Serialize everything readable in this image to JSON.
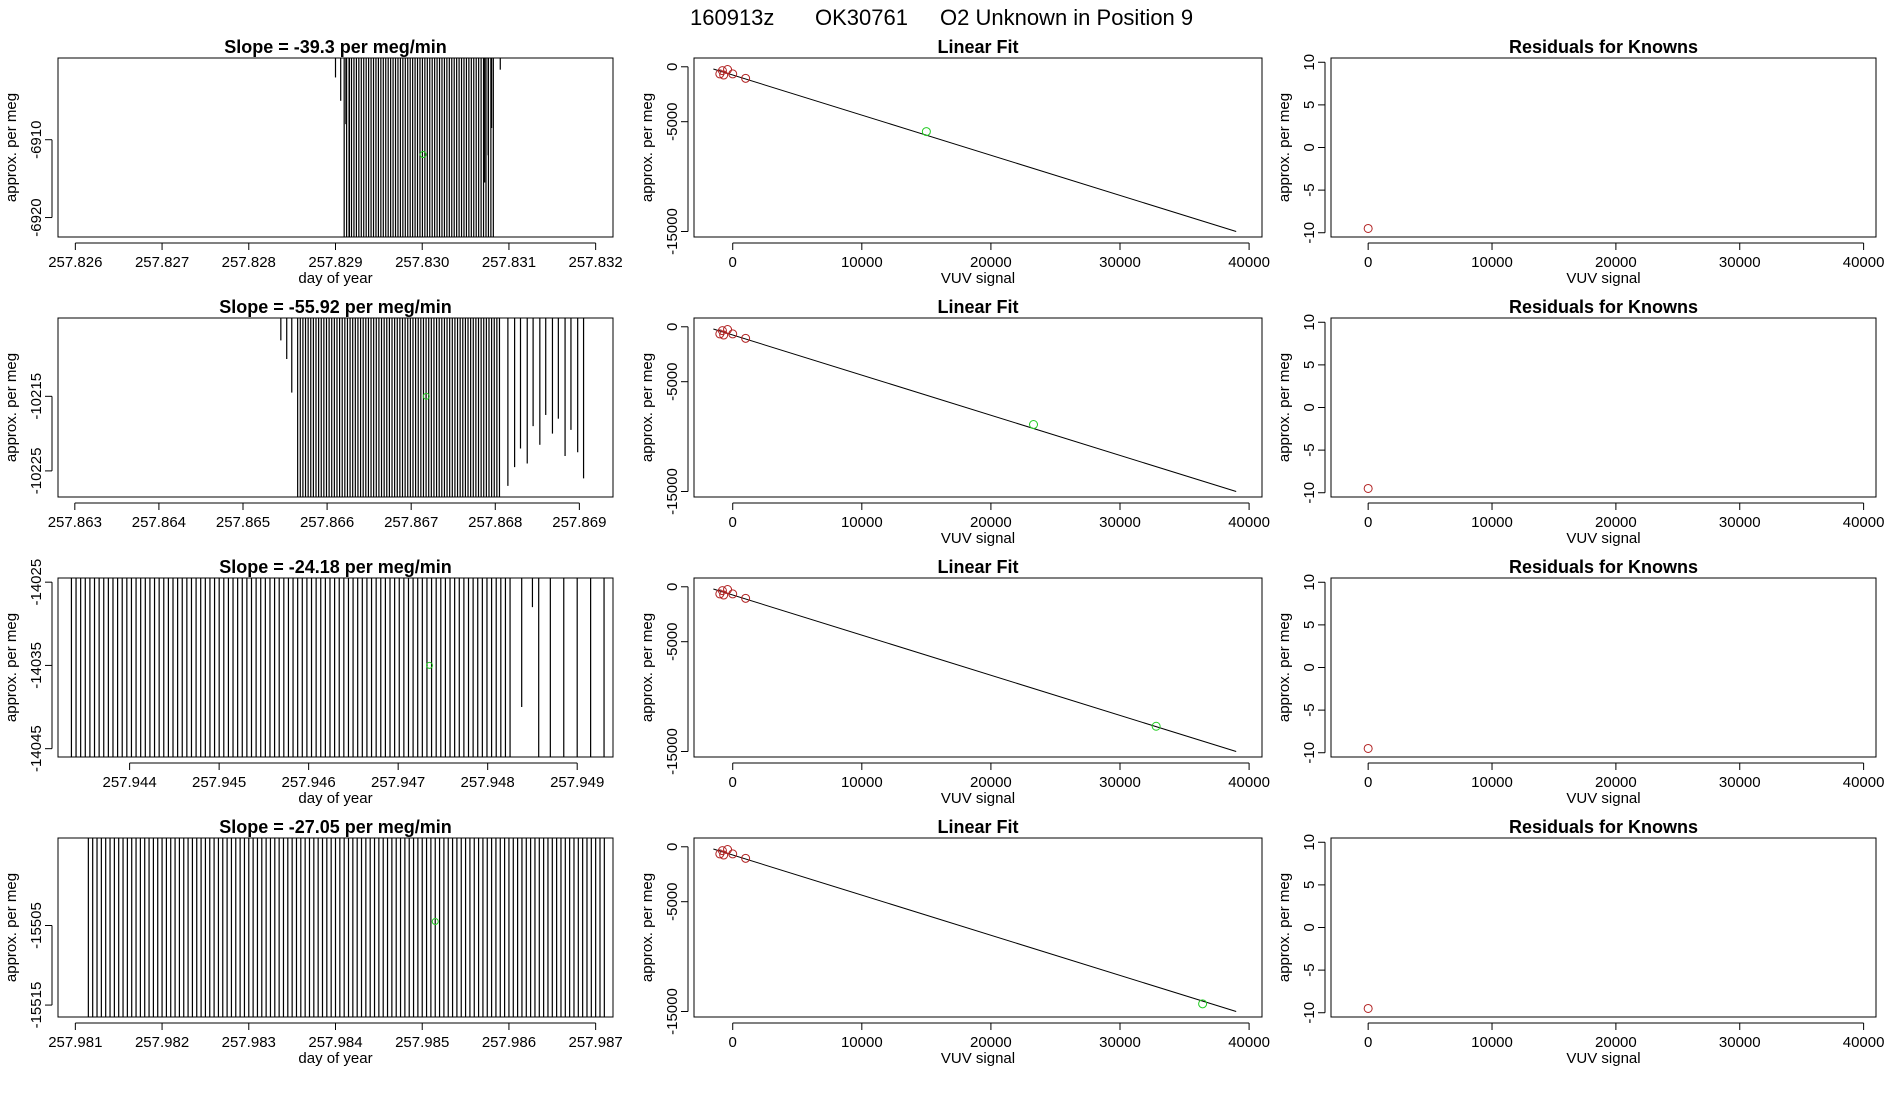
{
  "figure": {
    "title_parts": [
      "160913z",
      "OK30761",
      "O2 Unknown in Position  9"
    ]
  },
  "colors": {
    "axis": "#000000",
    "trace": "#000000",
    "unknown_point": "#22cc22",
    "known_point": "#b22222",
    "fit_line": "#000000"
  },
  "chart_data": [
    {
      "type": "line",
      "kind": "trace",
      "row": 0,
      "title": "Slope =  -39.3  per meg/min",
      "xlabel": "day of year",
      "ylabel": "approx. per meg",
      "xlim": [
        257.8258,
        257.8322
      ],
      "ylim": [
        -6922.5,
        -6899.5
      ],
      "xticks": [
        257.826,
        257.827,
        257.828,
        257.829,
        257.83,
        257.831,
        257.832
      ],
      "xticklabels": [
        "257.826",
        "257.827",
        "257.828",
        "257.829",
        "257.830",
        "257.831",
        "257.832"
      ],
      "yticks": [
        -6910,
        -6920
      ],
      "yticklabels": [
        "-6910",
        "-6920"
      ],
      "segments": {
        "x_start": 257.8291,
        "x_end": 257.83082,
        "count": 62,
        "y_top": -6899.5,
        "y_bottom_min": -6922.5
      },
      "irregular_segments": [
        [
          257.829,
          -6902.0
        ],
        [
          257.82906,
          -6905.0
        ],
        [
          257.82912,
          -6908.0
        ],
        [
          257.82916,
          -6922.5
        ],
        [
          257.83072,
          -6915.5
        ],
        [
          257.83076,
          -6912.0
        ],
        [
          257.8308,
          -6908.5
        ],
        [
          257.8309,
          -6901.0
        ]
      ],
      "points": [
        [
          257.83001,
          -6911.9
        ]
      ]
    },
    {
      "type": "scatter",
      "kind": "fit",
      "row": 0,
      "title": "Linear Fit",
      "xlabel": "VUV signal",
      "ylabel": "approx. per meg",
      "xlim": [
        -3000,
        41000
      ],
      "ylim": [
        -15500,
        800
      ],
      "xticks": [
        0,
        10000,
        20000,
        30000,
        40000
      ],
      "xticklabels": [
        "0",
        "10000",
        "20000",
        "30000",
        "40000"
      ],
      "yticks": [
        0,
        -5000,
        -15000
      ],
      "yticklabels": [
        "0",
        "-5000",
        "-15000"
      ],
      "fit_line": [
        [
          -1500,
          -200
        ],
        [
          39000,
          -15000
        ]
      ],
      "known_points": [
        [
          -800,
          -350
        ],
        [
          -400,
          -250
        ],
        [
          -1000,
          -650
        ],
        [
          -700,
          -750
        ],
        [
          0,
          -650
        ],
        [
          1000,
          -1050
        ]
      ],
      "points": [
        [
          15000,
          -5900
        ]
      ]
    },
    {
      "type": "scatter",
      "kind": "residual",
      "row": 0,
      "title": "Residuals for Knowns",
      "xlabel": "VUV signal",
      "ylabel": "approx. per meg",
      "xlim": [
        -3000,
        41000
      ],
      "ylim": [
        -10.5,
        10.5
      ],
      "xticks": [
        0,
        10000,
        20000,
        30000,
        40000
      ],
      "xticklabels": [
        "0",
        "10000",
        "20000",
        "30000",
        "40000"
      ],
      "yticks": [
        10,
        5,
        0,
        -5,
        -10
      ],
      "yticklabels": [
        "10",
        "5",
        "0",
        "-5",
        "-10"
      ],
      "known_points": [
        [
          0,
          -9.5
        ]
      ]
    },
    {
      "type": "line",
      "kind": "trace",
      "row": 1,
      "title": "Slope =  -55.92  per meg/min",
      "xlabel": "",
      "ylabel": "approx. per meg",
      "xlim": [
        257.8628,
        257.8694
      ],
      "ylim": [
        -10228.5,
        -10204.5
      ],
      "xticks": [
        257.863,
        257.864,
        257.865,
        257.866,
        257.867,
        257.868,
        257.869
      ],
      "xticklabels": [
        "257.863",
        "257.864",
        "257.865",
        "257.866",
        "257.867",
        "257.868",
        "257.869"
      ],
      "yticks": [
        -10215,
        -10225
      ],
      "yticklabels": [
        "-10215",
        "-10225"
      ],
      "segments": {
        "x_start": 257.86565,
        "x_end": 257.86805,
        "count": 78,
        "y_top": -10204.5,
        "y_bottom_min": -10228.5
      },
      "irregular_segments": [
        [
          257.86545,
          -10207.5
        ],
        [
          257.86552,
          -10210.0
        ],
        [
          257.86558,
          -10214.5
        ],
        [
          257.86815,
          -10227.0
        ],
        [
          257.86823,
          -10224.5
        ],
        [
          257.8683,
          -10222.0
        ],
        [
          257.86838,
          -10224.0
        ],
        [
          257.86845,
          -10219.0
        ],
        [
          257.86853,
          -10221.5
        ],
        [
          257.8686,
          -10217.5
        ],
        [
          257.86868,
          -10220.0
        ],
        [
          257.86875,
          -10218.0
        ],
        [
          257.86883,
          -10223.0
        ],
        [
          257.8689,
          -10219.5
        ],
        [
          257.86898,
          -10222.5
        ],
        [
          257.86905,
          -10226.0
        ]
      ],
      "points": [
        [
          257.86718,
          -10215.0
        ]
      ]
    },
    {
      "type": "scatter",
      "kind": "fit",
      "row": 1,
      "title": "Linear Fit",
      "xlabel": "VUV signal",
      "ylabel": "approx. per meg",
      "xlim": [
        -3000,
        41000
      ],
      "ylim": [
        -15500,
        800
      ],
      "xticks": [
        0,
        10000,
        20000,
        30000,
        40000
      ],
      "xticklabels": [
        "0",
        "10000",
        "20000",
        "30000",
        "40000"
      ],
      "yticks": [
        0,
        -5000,
        -15000
      ],
      "yticklabels": [
        "0",
        "-5000",
        "-15000"
      ],
      "fit_line": [
        [
          -1500,
          -200
        ],
        [
          39000,
          -15000
        ]
      ],
      "known_points": [
        [
          -800,
          -350
        ],
        [
          -400,
          -250
        ],
        [
          -1000,
          -650
        ],
        [
          -700,
          -750
        ],
        [
          0,
          -650
        ],
        [
          1000,
          -1050
        ]
      ],
      "points": [
        [
          23300,
          -8900
        ]
      ]
    },
    {
      "type": "scatter",
      "kind": "residual",
      "row": 1,
      "title": "Residuals for Knowns",
      "xlabel": "VUV signal",
      "ylabel": "approx. per meg",
      "xlim": [
        -3000,
        41000
      ],
      "ylim": [
        -10.5,
        10.5
      ],
      "xticks": [
        0,
        10000,
        20000,
        30000,
        40000
      ],
      "xticklabels": [
        "0",
        "10000",
        "20000",
        "30000",
        "40000"
      ],
      "yticks": [
        10,
        5,
        0,
        -5,
        -10
      ],
      "yticklabels": [
        "10",
        "5",
        "0",
        "-5",
        "-10"
      ],
      "known_points": [
        [
          0,
          -9.5
        ]
      ]
    },
    {
      "type": "line",
      "kind": "trace",
      "row": 2,
      "title": "Slope =  -24.18  per meg/min",
      "xlabel": "day of year",
      "ylabel": "approx. per meg",
      "xlim": [
        257.9432,
        257.9494
      ],
      "ylim": [
        -14046.0,
        -14024.5
      ],
      "xticks": [
        257.944,
        257.945,
        257.946,
        257.947,
        257.948,
        257.949
      ],
      "xticklabels": [
        "257.944",
        "257.945",
        "257.946",
        "257.947",
        "257.948",
        "257.949"
      ],
      "yticks": [
        -14025,
        -14035,
        -14045
      ],
      "yticklabels": [
        "-14025",
        "-14035",
        "-14045"
      ],
      "segments": {
        "x_start": 257.94335,
        "x_end": 257.94825,
        "count": 96,
        "y_top": -14024.5,
        "y_bottom_min": -14046.0
      },
      "irregular_segments": [
        [
          257.94838,
          -14040.0
        ],
        [
          257.9485,
          -14028.0
        ],
        [
          257.94857,
          -14046.0
        ],
        [
          257.9487,
          -14046.0
        ],
        [
          257.94885,
          -14046.0
        ],
        [
          257.949,
          -14046.0
        ],
        [
          257.94915,
          -14046.0
        ],
        [
          257.9493,
          -14046.0
        ]
      ],
      "points": [
        [
          257.94735,
          -14035.0
        ]
      ]
    },
    {
      "type": "scatter",
      "kind": "fit",
      "row": 2,
      "title": "Linear Fit",
      "xlabel": "VUV signal",
      "ylabel": "approx. per meg",
      "xlim": [
        -3000,
        41000
      ],
      "ylim": [
        -15500,
        800
      ],
      "xticks": [
        0,
        10000,
        20000,
        30000,
        40000
      ],
      "xticklabels": [
        "0",
        "10000",
        "20000",
        "30000",
        "40000"
      ],
      "yticks": [
        0,
        -5000,
        -15000
      ],
      "yticklabels": [
        "0",
        "-5000",
        "-15000"
      ],
      "fit_line": [
        [
          -1500,
          -200
        ],
        [
          39000,
          -15000
        ]
      ],
      "known_points": [
        [
          -800,
          -350
        ],
        [
          -400,
          -250
        ],
        [
          -1000,
          -650
        ],
        [
          -700,
          -750
        ],
        [
          0,
          -650
        ],
        [
          1000,
          -1050
        ]
      ],
      "points": [
        [
          32800,
          -12700
        ]
      ]
    },
    {
      "type": "scatter",
      "kind": "residual",
      "row": 2,
      "title": "Residuals for Knowns",
      "xlabel": "VUV signal",
      "ylabel": "approx. per meg",
      "xlim": [
        -3000,
        41000
      ],
      "ylim": [
        -10.5,
        10.5
      ],
      "xticks": [
        0,
        10000,
        20000,
        30000,
        40000
      ],
      "xticklabels": [
        "0",
        "10000",
        "20000",
        "30000",
        "40000"
      ],
      "yticks": [
        10,
        5,
        0,
        -5,
        -10
      ],
      "yticklabels": [
        "10",
        "5",
        "0",
        "-5",
        "-10"
      ],
      "known_points": [
        [
          0,
          -9.5
        ]
      ]
    },
    {
      "type": "line",
      "kind": "trace",
      "row": 3,
      "title": "Slope =  -27.05  per meg/min",
      "xlabel": "day of year",
      "ylabel": "approx. per meg",
      "xlim": [
        257.9808,
        257.9872
      ],
      "ylim": [
        -15516.5,
        -15494.0
      ],
      "xticks": [
        257.981,
        257.982,
        257.983,
        257.984,
        257.985,
        257.986,
        257.987
      ],
      "xticklabels": [
        "257.981",
        "257.982",
        "257.983",
        "257.984",
        "257.985",
        "257.986",
        "257.987"
      ],
      "yticks": [
        -15505,
        -15515
      ],
      "yticklabels": [
        "-15505",
        "-15515"
      ],
      "segments": {
        "x_start": 257.98115,
        "x_end": 257.9871,
        "count": 120,
        "y_top": -15494.0,
        "y_bottom_min": -15516.5
      },
      "irregular_segments": [],
      "points": [
        [
          257.98515,
          -15504.5
        ]
      ]
    },
    {
      "type": "scatter",
      "kind": "fit",
      "row": 3,
      "title": "Linear Fit",
      "xlabel": "VUV signal",
      "ylabel": "approx. per meg",
      "xlim": [
        -3000,
        41000
      ],
      "ylim": [
        -15500,
        800
      ],
      "xticks": [
        0,
        10000,
        20000,
        30000,
        40000
      ],
      "xticklabels": [
        "0",
        "10000",
        "20000",
        "30000",
        "40000"
      ],
      "yticks": [
        0,
        -5000,
        -15000
      ],
      "yticklabels": [
        "0",
        "-5000",
        "-15000"
      ],
      "fit_line": [
        [
          -1500,
          -200
        ],
        [
          39000,
          -15000
        ]
      ],
      "known_points": [
        [
          -800,
          -350
        ],
        [
          -400,
          -250
        ],
        [
          -1000,
          -650
        ],
        [
          -700,
          -750
        ],
        [
          0,
          -650
        ],
        [
          1000,
          -1050
        ]
      ],
      "points": [
        [
          36400,
          -14300
        ]
      ]
    },
    {
      "type": "scatter",
      "kind": "residual",
      "row": 3,
      "title": "Residuals for Knowns",
      "xlabel": "VUV signal",
      "ylabel": "approx. per meg",
      "xlim": [
        -3000,
        41000
      ],
      "ylim": [
        -10.5,
        10.5
      ],
      "xticks": [
        0,
        10000,
        20000,
        30000,
        40000
      ],
      "xticklabels": [
        "0",
        "10000",
        "20000",
        "30000",
        "40000"
      ],
      "yticks": [
        10,
        5,
        0,
        -5,
        -10
      ],
      "yticklabels": [
        "10",
        "5",
        "0",
        "-5",
        "-10"
      ],
      "known_points": [
        [
          0,
          -9.5
        ]
      ]
    }
  ]
}
